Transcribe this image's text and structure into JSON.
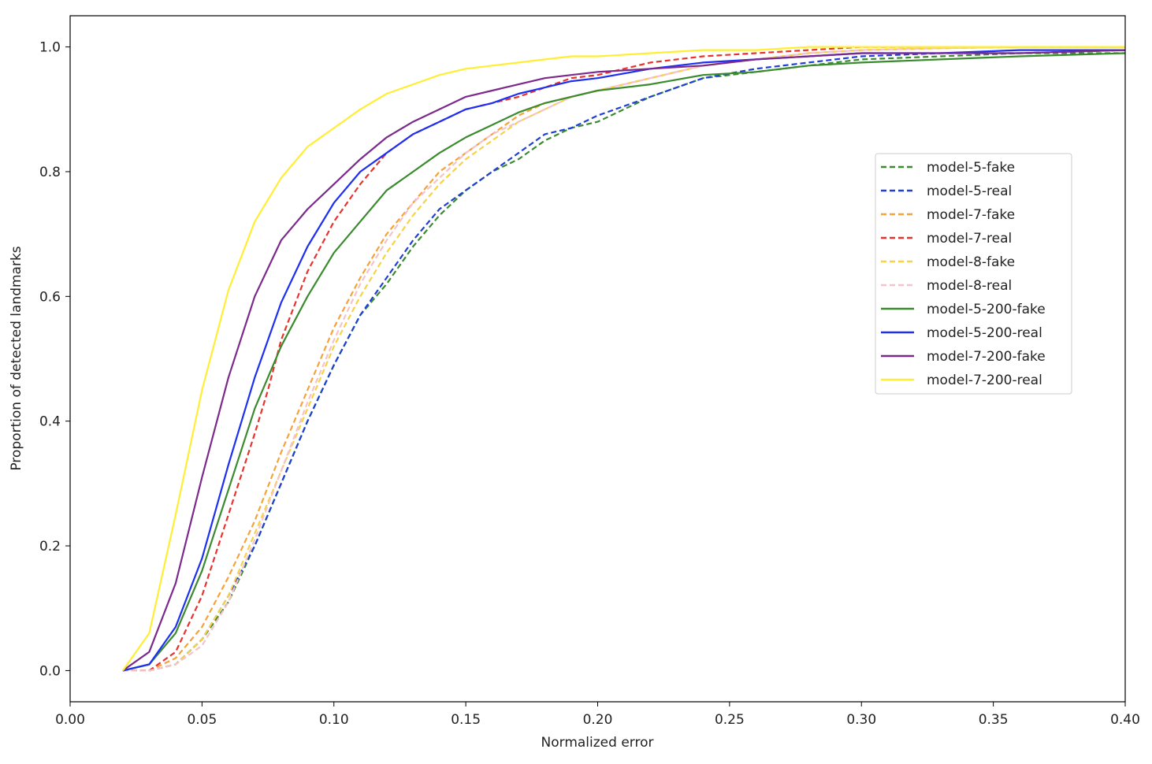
{
  "chart_data": {
    "type": "line",
    "title": "",
    "xlabel": "Normalized error",
    "ylabel": "Proportion of detected landmarks",
    "xlim": [
      0.0,
      0.4
    ],
    "ylim": [
      -0.05,
      1.05
    ],
    "xticks": [
      0.0,
      0.05,
      0.1,
      0.15,
      0.2,
      0.25,
      0.3,
      0.35,
      0.4
    ],
    "xtick_labels": [
      "0.00",
      "0.05",
      "0.10",
      "0.15",
      "0.20",
      "0.25",
      "0.30",
      "0.35",
      "0.40"
    ],
    "yticks": [
      0.0,
      0.2,
      0.4,
      0.6,
      0.8,
      1.0
    ],
    "ytick_labels": [
      "0.0",
      "0.2",
      "0.4",
      "0.6",
      "0.8",
      "1.0"
    ],
    "grid": false,
    "legend_position": "center-right",
    "series": [
      {
        "name": "model-5-fake",
        "color": "#3a8a2e",
        "dash": "dashed",
        "x": [
          0.02,
          0.03,
          0.04,
          0.05,
          0.06,
          0.07,
          0.08,
          0.09,
          0.1,
          0.11,
          0.12,
          0.13,
          0.14,
          0.15,
          0.16,
          0.17,
          0.18,
          0.19,
          0.2,
          0.22,
          0.24,
          0.26,
          0.28,
          0.3,
          0.33,
          0.36,
          0.4
        ],
        "y": [
          0.0,
          0.0,
          0.01,
          0.05,
          0.11,
          0.2,
          0.3,
          0.4,
          0.49,
          0.57,
          0.62,
          0.68,
          0.73,
          0.77,
          0.8,
          0.82,
          0.85,
          0.87,
          0.88,
          0.92,
          0.95,
          0.96,
          0.97,
          0.98,
          0.985,
          0.99,
          0.99
        ]
      },
      {
        "name": "model-5-real",
        "color": "#1f3fd6",
        "dash": "dashed",
        "x": [
          0.02,
          0.03,
          0.04,
          0.05,
          0.06,
          0.07,
          0.08,
          0.09,
          0.1,
          0.11,
          0.12,
          0.13,
          0.14,
          0.15,
          0.16,
          0.17,
          0.18,
          0.19,
          0.2,
          0.22,
          0.24,
          0.26,
          0.28,
          0.3,
          0.33,
          0.36,
          0.4
        ],
        "y": [
          0.0,
          0.0,
          0.01,
          0.05,
          0.12,
          0.2,
          0.3,
          0.4,
          0.49,
          0.57,
          0.63,
          0.69,
          0.74,
          0.77,
          0.8,
          0.83,
          0.86,
          0.87,
          0.89,
          0.92,
          0.95,
          0.965,
          0.975,
          0.985,
          0.99,
          0.99,
          0.995
        ]
      },
      {
        "name": "model-7-fake",
        "color": "#f5a23a",
        "dash": "dashed",
        "x": [
          0.02,
          0.03,
          0.04,
          0.05,
          0.06,
          0.07,
          0.08,
          0.09,
          0.1,
          0.11,
          0.12,
          0.13,
          0.14,
          0.15,
          0.16,
          0.17,
          0.18,
          0.19,
          0.2,
          0.22,
          0.24,
          0.26,
          0.28,
          0.3,
          0.33,
          0.36,
          0.4
        ],
        "y": [
          0.0,
          0.0,
          0.02,
          0.07,
          0.15,
          0.24,
          0.35,
          0.45,
          0.55,
          0.63,
          0.7,
          0.75,
          0.8,
          0.83,
          0.86,
          0.89,
          0.91,
          0.92,
          0.93,
          0.95,
          0.97,
          0.98,
          0.99,
          0.995,
          0.998,
          1.0,
          1.0
        ]
      },
      {
        "name": "model-7-real",
        "color": "#e8322e",
        "dash": "dashed",
        "x": [
          0.02,
          0.03,
          0.04,
          0.05,
          0.06,
          0.07,
          0.075,
          0.08,
          0.09,
          0.1,
          0.11,
          0.12,
          0.13,
          0.14,
          0.15,
          0.16,
          0.17,
          0.18,
          0.19,
          0.2,
          0.22,
          0.24,
          0.26,
          0.28,
          0.3,
          0.33,
          0.358
        ],
        "y": [
          0.0,
          0.0,
          0.03,
          0.12,
          0.25,
          0.38,
          0.45,
          0.53,
          0.64,
          0.72,
          0.78,
          0.83,
          0.86,
          0.88,
          0.9,
          0.91,
          0.92,
          0.935,
          0.95,
          0.955,
          0.975,
          0.985,
          0.99,
          0.995,
          1.0,
          1.0,
          1.0
        ]
      },
      {
        "name": "model-8-fake",
        "color": "#f7d244",
        "dash": "dashed",
        "x": [
          0.02,
          0.03,
          0.04,
          0.05,
          0.06,
          0.07,
          0.08,
          0.09,
          0.1,
          0.11,
          0.12,
          0.13,
          0.14,
          0.15,
          0.16,
          0.17,
          0.18,
          0.19,
          0.2,
          0.22,
          0.24,
          0.26,
          0.28,
          0.3,
          0.33,
          0.36,
          0.4
        ],
        "y": [
          0.0,
          0.0,
          0.01,
          0.05,
          0.12,
          0.22,
          0.32,
          0.42,
          0.52,
          0.6,
          0.67,
          0.73,
          0.78,
          0.82,
          0.85,
          0.88,
          0.9,
          0.92,
          0.93,
          0.95,
          0.97,
          0.98,
          0.99,
          0.995,
          0.998,
          1.0,
          1.0
        ]
      },
      {
        "name": "model-8-real",
        "color": "#f4c3cb",
        "dash": "dashed",
        "x": [
          0.02,
          0.03,
          0.04,
          0.05,
          0.06,
          0.07,
          0.08,
          0.09,
          0.1,
          0.11,
          0.12,
          0.13,
          0.14,
          0.15,
          0.16,
          0.17,
          0.18,
          0.19,
          0.2,
          0.22,
          0.24,
          0.26,
          0.28,
          0.3,
          0.33,
          0.36,
          0.4
        ],
        "y": [
          0.0,
          0.0,
          0.01,
          0.04,
          0.11,
          0.21,
          0.32,
          0.43,
          0.53,
          0.62,
          0.69,
          0.75,
          0.79,
          0.83,
          0.86,
          0.88,
          0.9,
          0.92,
          0.93,
          0.95,
          0.97,
          0.98,
          0.99,
          0.995,
          0.998,
          1.0,
          1.0
        ]
      },
      {
        "name": "model-5-200-fake",
        "color": "#3a8a2e",
        "dash": "solid",
        "x": [
          0.02,
          0.03,
          0.04,
          0.05,
          0.06,
          0.07,
          0.08,
          0.09,
          0.1,
          0.11,
          0.12,
          0.13,
          0.14,
          0.15,
          0.16,
          0.17,
          0.18,
          0.19,
          0.2,
          0.22,
          0.24,
          0.26,
          0.28,
          0.3,
          0.33,
          0.36,
          0.4
        ],
        "y": [
          0.0,
          0.01,
          0.06,
          0.16,
          0.29,
          0.42,
          0.52,
          0.6,
          0.67,
          0.72,
          0.77,
          0.8,
          0.83,
          0.855,
          0.875,
          0.895,
          0.91,
          0.92,
          0.93,
          0.94,
          0.955,
          0.96,
          0.97,
          0.975,
          0.98,
          0.985,
          0.99
        ]
      },
      {
        "name": "model-5-200-real",
        "color": "#1c2ff2",
        "dash": "solid",
        "x": [
          0.02,
          0.03,
          0.04,
          0.05,
          0.06,
          0.07,
          0.08,
          0.09,
          0.1,
          0.11,
          0.12,
          0.13,
          0.14,
          0.15,
          0.16,
          0.17,
          0.18,
          0.19,
          0.2,
          0.22,
          0.24,
          0.26,
          0.28,
          0.3,
          0.33,
          0.36,
          0.4
        ],
        "y": [
          0.0,
          0.01,
          0.07,
          0.18,
          0.33,
          0.47,
          0.59,
          0.68,
          0.75,
          0.8,
          0.83,
          0.86,
          0.88,
          0.9,
          0.91,
          0.925,
          0.935,
          0.945,
          0.95,
          0.965,
          0.975,
          0.98,
          0.985,
          0.99,
          0.99,
          0.995,
          0.995
        ]
      },
      {
        "name": "model-7-200-fake",
        "color": "#7b2a8c",
        "dash": "solid",
        "x": [
          0.02,
          0.03,
          0.04,
          0.05,
          0.06,
          0.07,
          0.08,
          0.09,
          0.1,
          0.11,
          0.12,
          0.13,
          0.14,
          0.15,
          0.16,
          0.17,
          0.18,
          0.19,
          0.2,
          0.22,
          0.24,
          0.26,
          0.28,
          0.3,
          0.33,
          0.36,
          0.4
        ],
        "y": [
          0.0,
          0.03,
          0.14,
          0.31,
          0.47,
          0.6,
          0.69,
          0.74,
          0.78,
          0.82,
          0.855,
          0.88,
          0.9,
          0.92,
          0.93,
          0.94,
          0.95,
          0.955,
          0.96,
          0.965,
          0.97,
          0.98,
          0.985,
          0.99,
          0.99,
          0.99,
          0.995
        ]
      },
      {
        "name": "model-7-200-real",
        "color": "#ffee33",
        "dash": "solid",
        "x": [
          0.02,
          0.03,
          0.04,
          0.05,
          0.06,
          0.07,
          0.08,
          0.09,
          0.1,
          0.11,
          0.12,
          0.13,
          0.14,
          0.15,
          0.16,
          0.17,
          0.18,
          0.19,
          0.2,
          0.22,
          0.24,
          0.26,
          0.28,
          0.3,
          0.33,
          0.36,
          0.4
        ],
        "y": [
          0.0,
          0.06,
          0.25,
          0.45,
          0.61,
          0.72,
          0.79,
          0.84,
          0.87,
          0.9,
          0.925,
          0.94,
          0.955,
          0.965,
          0.97,
          0.975,
          0.98,
          0.985,
          0.985,
          0.99,
          0.995,
          0.995,
          1.0,
          1.0,
          1.0,
          1.0,
          1.0
        ]
      }
    ]
  }
}
